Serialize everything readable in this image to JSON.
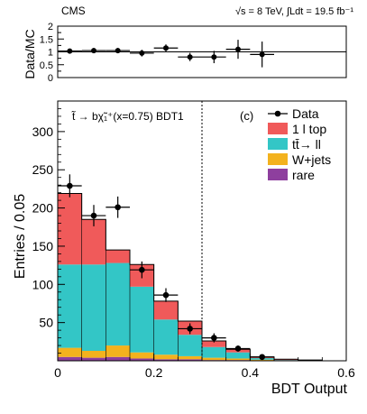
{
  "header": {
    "experiment": "CMS",
    "energy": "√s = 8 TeV, ∫Ldt = 19.5 fb⁻¹"
  },
  "chart_data": [
    {
      "type": "scatter",
      "ylabel": "Data/MC",
      "xlim": [
        0,
        0.6
      ],
      "ylim": [
        0,
        2
      ],
      "yticks": [
        "0",
        "0.5",
        "1",
        "1.5",
        "2"
      ],
      "reference_line": 1,
      "x": [
        0.025,
        0.075,
        0.125,
        0.175,
        0.225,
        0.275,
        0.325,
        0.375,
        0.425
      ],
      "y": [
        1.03,
        1.05,
        1.05,
        0.95,
        1.15,
        0.8,
        0.8,
        1.1,
        0.9
      ],
      "yerr": [
        0.09,
        0.1,
        0.1,
        0.13,
        0.14,
        0.16,
        0.24,
        0.37,
        0.5
      ]
    },
    {
      "type": "bar",
      "stacked": true,
      "ylabel": "Entries / 0.05",
      "xlabel": "BDT Output",
      "xlim": [
        0,
        0.6
      ],
      "ylim": [
        0,
        340
      ],
      "xticks": [
        "0",
        "0.2",
        "0.4",
        "0.6"
      ],
      "yticks": [
        "50",
        "100",
        "150",
        "200",
        "250",
        "300"
      ],
      "bin_edges": [
        0,
        0.05,
        0.1,
        0.15,
        0.2,
        0.25,
        0.3,
        0.35,
        0.4,
        0.45,
        0.5,
        0.55,
        0.6
      ],
      "panel_label": "(c)",
      "annotation": "t̃ → bχ̃₁⁺(x=0.75) BDT1",
      "cut_line_x": 0.3,
      "legend_position": "top-right",
      "series": [
        {
          "name": "rare",
          "color": "#8e3f9e",
          "values": [
            5,
            4,
            5,
            3,
            2,
            2,
            1,
            1,
            0.5,
            0,
            0,
            0
          ]
        },
        {
          "name": "W+jets",
          "color": "#f3b21e",
          "values": [
            12,
            9,
            15,
            8,
            6,
            4,
            3,
            2,
            1,
            0,
            0,
            0
          ]
        },
        {
          "name": "tt̄→ ll",
          "color": "#33c6c6",
          "values": [
            109,
            113,
            108,
            86,
            46,
            28,
            14,
            8,
            2,
            1,
            0.5,
            0
          ]
        },
        {
          "name": "1 l top",
          "color": "#f05a5a",
          "values": [
            93,
            59,
            17,
            29,
            24,
            18,
            8,
            4,
            1.5,
            1,
            0.5,
            0
          ]
        }
      ],
      "data": {
        "name": "Data",
        "x": [
          0.025,
          0.075,
          0.125,
          0.175,
          0.225,
          0.275,
          0.325,
          0.375,
          0.425
        ],
        "y": [
          229,
          190,
          201,
          119,
          86,
          42,
          30,
          16,
          5
        ],
        "yerr": [
          15,
          14,
          14,
          11,
          9,
          7,
          6,
          4,
          2.5
        ]
      }
    }
  ]
}
